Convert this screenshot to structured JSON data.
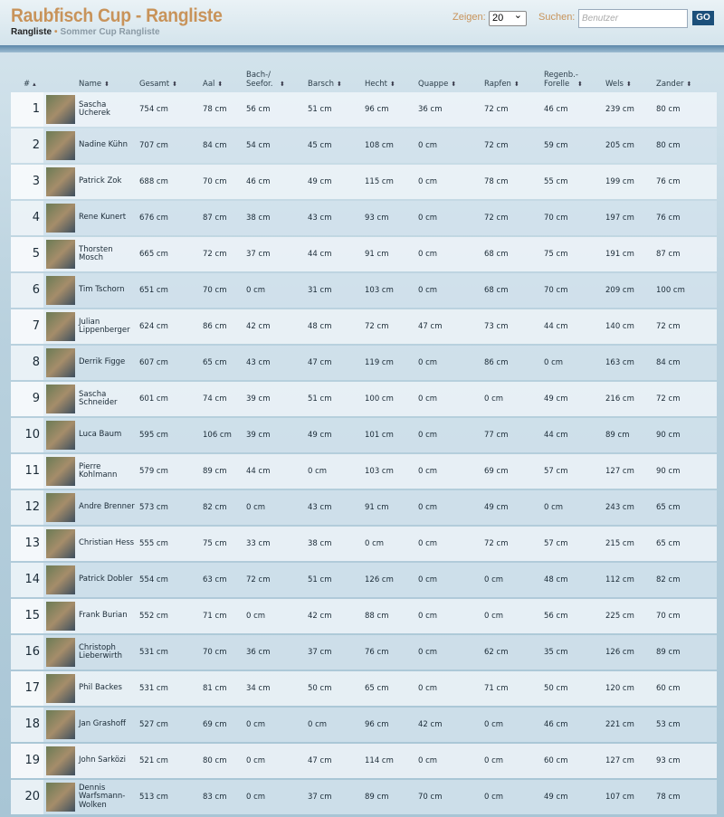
{
  "header": {
    "title": "Raubfisch Cup - Rangliste",
    "breadcrumb": [
      "Rangliste",
      "Sommer Cup Rangliste"
    ]
  },
  "controls": {
    "show_label": "Zeigen:",
    "show_value": "20",
    "search_label": "Suchen:",
    "search_placeholder": "Benutzer",
    "go_button": "GO"
  },
  "table": {
    "columns": [
      "#",
      "Name",
      "Gesamt",
      "Aal",
      "Bach-/ Seefor.",
      "Barsch",
      "Hecht",
      "Quappe",
      "Rapfen",
      "Regenb.-Forelle",
      "Wels",
      "Zander"
    ],
    "rows": [
      [
        "1",
        "Sascha Ucherek",
        "754 cm",
        "78 cm",
        "56 cm",
        "51 cm",
        "96 cm",
        "36 cm",
        "72 cm",
        "46 cm",
        "239 cm",
        "80 cm"
      ],
      [
        "2",
        "Nadine Kühn",
        "707 cm",
        "84 cm",
        "54 cm",
        "45 cm",
        "108 cm",
        "0 cm",
        "72 cm",
        "59 cm",
        "205 cm",
        "80 cm"
      ],
      [
        "3",
        "Patrick Zok",
        "688 cm",
        "70 cm",
        "46 cm",
        "49 cm",
        "115 cm",
        "0 cm",
        "78 cm",
        "55 cm",
        "199 cm",
        "76 cm"
      ],
      [
        "4",
        "Rene Kunert",
        "676 cm",
        "87 cm",
        "38 cm",
        "43 cm",
        "93 cm",
        "0 cm",
        "72 cm",
        "70 cm",
        "197 cm",
        "76 cm"
      ],
      [
        "5",
        "Thorsten Mosch",
        "665 cm",
        "72 cm",
        "37 cm",
        "44 cm",
        "91 cm",
        "0 cm",
        "68 cm",
        "75 cm",
        "191 cm",
        "87 cm"
      ],
      [
        "6",
        "Tim Tschorn",
        "651 cm",
        "70 cm",
        "0 cm",
        "31 cm",
        "103 cm",
        "0 cm",
        "68 cm",
        "70 cm",
        "209 cm",
        "100 cm"
      ],
      [
        "7",
        "Julian Lippenberger",
        "624 cm",
        "86 cm",
        "42 cm",
        "48 cm",
        "72 cm",
        "47 cm",
        "73 cm",
        "44 cm",
        "140 cm",
        "72 cm"
      ],
      [
        "8",
        "Derrik Figge",
        "607 cm",
        "65 cm",
        "43 cm",
        "47 cm",
        "119 cm",
        "0 cm",
        "86 cm",
        "0 cm",
        "163 cm",
        "84 cm"
      ],
      [
        "9",
        "Sascha Schneider",
        "601 cm",
        "74 cm",
        "39 cm",
        "51 cm",
        "100 cm",
        "0 cm",
        "0 cm",
        "49 cm",
        "216 cm",
        "72 cm"
      ],
      [
        "10",
        "Luca Baum",
        "595 cm",
        "106 cm",
        "39 cm",
        "49 cm",
        "101 cm",
        "0 cm",
        "77 cm",
        "44 cm",
        "89 cm",
        "90 cm"
      ],
      [
        "11",
        "Pierre Kohlmann",
        "579 cm",
        "89 cm",
        "44 cm",
        "0 cm",
        "103 cm",
        "0 cm",
        "69 cm",
        "57 cm",
        "127 cm",
        "90 cm"
      ],
      [
        "12",
        "Andre Brenner",
        "573 cm",
        "82 cm",
        "0 cm",
        "43 cm",
        "91 cm",
        "0 cm",
        "49 cm",
        "0 cm",
        "243 cm",
        "65 cm"
      ],
      [
        "13",
        "Christian Hess",
        "555 cm",
        "75 cm",
        "33 cm",
        "38 cm",
        "0 cm",
        "0 cm",
        "72 cm",
        "57 cm",
        "215 cm",
        "65 cm"
      ],
      [
        "14",
        "Patrick Dobler",
        "554 cm",
        "63 cm",
        "72 cm",
        "51 cm",
        "126 cm",
        "0 cm",
        "0 cm",
        "48 cm",
        "112 cm",
        "82 cm"
      ],
      [
        "15",
        "Frank Burian",
        "552 cm",
        "71 cm",
        "0 cm",
        "42 cm",
        "88 cm",
        "0 cm",
        "0 cm",
        "56 cm",
        "225 cm",
        "70 cm"
      ],
      [
        "16",
        "Christoph Lieberwirth",
        "531 cm",
        "70 cm",
        "36 cm",
        "37 cm",
        "76 cm",
        "0 cm",
        "62 cm",
        "35 cm",
        "126 cm",
        "89 cm"
      ],
      [
        "17",
        "Phil Backes",
        "531 cm",
        "81 cm",
        "34 cm",
        "50 cm",
        "65 cm",
        "0 cm",
        "71 cm",
        "50 cm",
        "120 cm",
        "60 cm"
      ],
      [
        "18",
        "Jan Grashoff",
        "527 cm",
        "69 cm",
        "0 cm",
        "0 cm",
        "96 cm",
        "42 cm",
        "0 cm",
        "46 cm",
        "221 cm",
        "53 cm"
      ],
      [
        "19",
        "John Sarközi",
        "521 cm",
        "80 cm",
        "0 cm",
        "47 cm",
        "114 cm",
        "0 cm",
        "0 cm",
        "60 cm",
        "127 cm",
        "93 cm"
      ],
      [
        "20",
        "Dennis Warfsmann-Wolken",
        "513 cm",
        "83 cm",
        "0 cm",
        "37 cm",
        "89 cm",
        "70 cm",
        "0 cm",
        "49 cm",
        "107 cm",
        "78 cm"
      ]
    ]
  }
}
